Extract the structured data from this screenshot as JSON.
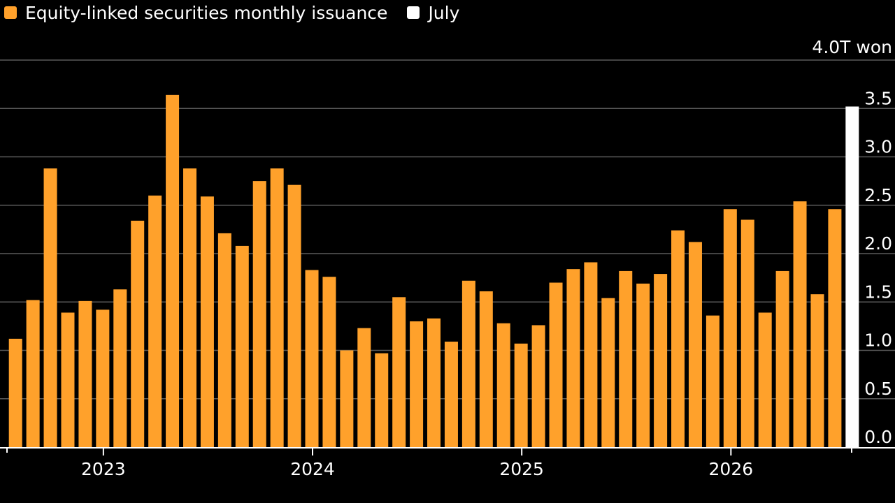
{
  "legend": {
    "items": [
      {
        "label": "Equity-linked securities monthly issuance",
        "color": "#ffa12b"
      },
      {
        "label": "July",
        "color": "#ffffff"
      }
    ]
  },
  "chart_data": {
    "type": "bar",
    "unit_label": "4.0T won",
    "ylim": [
      0,
      4.0
    ],
    "y_ticks": [
      "0.0",
      "0.5",
      "1.0",
      "1.5",
      "2.0",
      "2.5",
      "3.0",
      "3.5"
    ],
    "x_tick_labels": [
      "2023",
      "2024",
      "2025",
      "2026"
    ],
    "grid": true,
    "legend_position": "top-left",
    "series": [
      {
        "name": "Equity-linked securities monthly issuance",
        "color": "#ffa12b",
        "categories": [
          "2022-08",
          "2022-09",
          "2022-10",
          "2022-11",
          "2022-12",
          "2023-01",
          "2023-02",
          "2023-03",
          "2023-04",
          "2023-05",
          "2023-06",
          "2023-07",
          "2023-08",
          "2023-09",
          "2023-10",
          "2023-11",
          "2023-12",
          "2024-01",
          "2024-02",
          "2024-03",
          "2024-04",
          "2024-05",
          "2024-06",
          "2024-07",
          "2024-08",
          "2024-09",
          "2024-10",
          "2024-11",
          "2024-12",
          "2025-01",
          "2025-02",
          "2025-03",
          "2025-04",
          "2025-05",
          "2025-06",
          "2025-07",
          "2025-08",
          "2025-09",
          "2025-10",
          "2025-11",
          "2025-12",
          "2026-01",
          "2026-02",
          "2026-03",
          "2026-04",
          "2026-05",
          "2026-06",
          "2026-07"
        ],
        "values": [
          1.12,
          1.52,
          2.88,
          1.39,
          1.51,
          1.42,
          1.63,
          2.34,
          2.6,
          3.64,
          2.88,
          2.59,
          2.21,
          2.08,
          2.75,
          2.88,
          2.71,
          1.83,
          1.76,
          1.0,
          1.23,
          0.97,
          1.55,
          1.3,
          1.33,
          1.09,
          1.72,
          1.61,
          1.28,
          1.07,
          1.26,
          1.7,
          1.84,
          1.91,
          1.54,
          1.82,
          1.69,
          1.79,
          2.24,
          2.12,
          1.36,
          2.46,
          2.35,
          1.39,
          1.82,
          2.54,
          1.58,
          2.46
        ]
      },
      {
        "name": "July",
        "color": "#ffffff",
        "categories": [
          "2026-08"
        ],
        "values": [
          3.52
        ]
      }
    ]
  }
}
